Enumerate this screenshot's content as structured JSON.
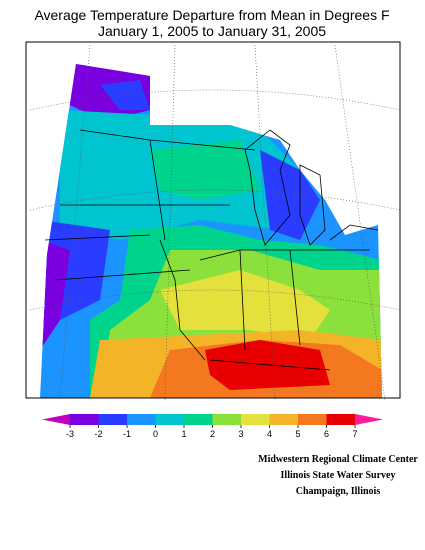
{
  "title": {
    "line1": "Average Temperature Departure from Mean in Degrees F",
    "line2": "January 1, 2005 to January 31, 2005"
  },
  "legend": {
    "ticks": [
      -3,
      -2,
      -1,
      0,
      1,
      2,
      3,
      4,
      5,
      6,
      7
    ],
    "colors": [
      "#c000c0",
      "#7a00e0",
      "#2a3cff",
      "#1c94ff",
      "#00c4d0",
      "#00d48c",
      "#8ce03c",
      "#e4e03c",
      "#f4b428",
      "#f47820",
      "#e80000",
      "#ff1c9c"
    ]
  },
  "credits": [
    "Midwestern Regional Climate Center",
    "Illinois State Water Survey",
    "Champaign, Illinois"
  ]
}
